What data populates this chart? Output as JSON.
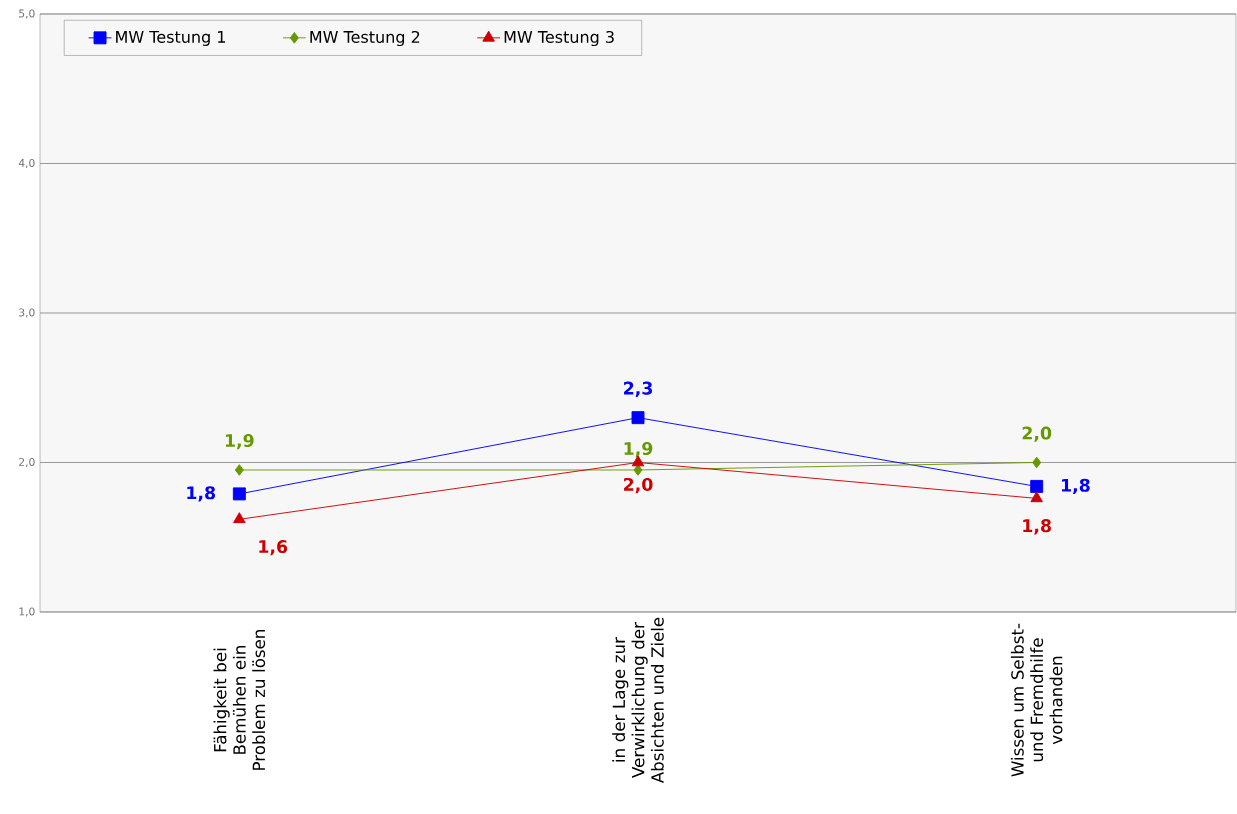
{
  "chart_data": {
    "type": "line",
    "categories": [
      "Fähigkeit bei Bemühen ein Problem zu lösen",
      "in der Lage zur Verwirklichung der Absichten und Ziele",
      "Wissen um Selbst- und Fremdhilfe vorhanden"
    ],
    "series": [
      {
        "name": "MW Testung 1",
        "color": "#0000ff",
        "marker": "square",
        "values": [
          1.79,
          2.3,
          1.84
        ],
        "value_labels": [
          "1,8",
          "2,3",
          "1,8"
        ]
      },
      {
        "name": "MW Testung 2",
        "color": "#669900",
        "marker": "diamond",
        "values": [
          1.95,
          1.95,
          2.0
        ],
        "value_labels": [
          "1,9",
          "1,9",
          "2,0"
        ]
      },
      {
        "name": "MW Testung 3",
        "color": "#cc0000",
        "marker": "triangle",
        "values": [
          1.62,
          2.0,
          1.76
        ],
        "value_labels": [
          "1,6",
          "2,0",
          "1,8"
        ]
      }
    ],
    "ylim": [
      1.0,
      5.0
    ],
    "yticks": [
      {
        "value": 1.0,
        "label": "1,0"
      },
      {
        "value": 2.0,
        "label": "2,0"
      },
      {
        "value": 3.0,
        "label": "3,0"
      },
      {
        "value": 4.0,
        "label": "4,0"
      },
      {
        "value": 5.0,
        "label": "5,0"
      }
    ],
    "grid": "y",
    "legend": "top left",
    "line_style": "solid"
  }
}
